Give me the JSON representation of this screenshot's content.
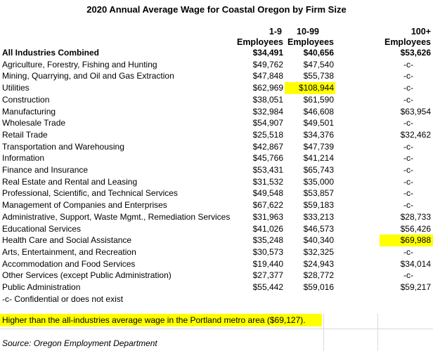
{
  "title": "2020 Annual Average Wage for Coastal Oregon by Firm Size",
  "headers": {
    "col1_line1": "1-9",
    "col1_line2": "Employees",
    "col2_line1": "10-99",
    "col2_line2": "Employees",
    "col3_line1": "100+",
    "col3_line2": "Employees"
  },
  "rows": [
    {
      "label": "All Industries Combined",
      "v1": "$34,491",
      "v2": "$40,656",
      "v3": "$53,626"
    },
    {
      "label": "Agriculture, Forestry, Fishing and Hunting",
      "v1": "$49,762",
      "v2": "$47,540",
      "v3": "-c-"
    },
    {
      "label": "Mining, Quarrying, and Oil and Gas Extraction",
      "v1": "$47,848",
      "v2": "$55,738",
      "v3": "-c-"
    },
    {
      "label": "Utilities",
      "v1": "$62,969",
      "v2": "$108,944",
      "v3": "-c-"
    },
    {
      "label": "Construction",
      "v1": "$38,051",
      "v2": "$61,590",
      "v3": "-c-"
    },
    {
      "label": "Manufacturing",
      "v1": "$32,984",
      "v2": "$46,608",
      "v3": "$63,954"
    },
    {
      "label": "Wholesale Trade",
      "v1": "$54,907",
      "v2": "$49,501",
      "v3": "-c-"
    },
    {
      "label": "Retail Trade",
      "v1": "$25,518",
      "v2": "$34,376",
      "v3": "$32,462"
    },
    {
      "label": "Transportation and Warehousing",
      "v1": "$42,867",
      "v2": "$47,739",
      "v3": "-c-"
    },
    {
      "label": "Information",
      "v1": "$45,766",
      "v2": "$41,214",
      "v3": "-c-"
    },
    {
      "label": "Finance and Insurance",
      "v1": "$53,431",
      "v2": "$65,743",
      "v3": "-c-"
    },
    {
      "label": "Real Estate and Rental and Leasing",
      "v1": "$31,532",
      "v2": "$35,000",
      "v3": "-c-"
    },
    {
      "label": "Professional, Scientific, and Technical Services",
      "v1": "$49,548",
      "v2": "$53,857",
      "v3": "-c-"
    },
    {
      "label": "Management of Companies and Enterprises",
      "v1": "$67,622",
      "v2": "$59,183",
      "v3": "-c-"
    },
    {
      "label": "Administrative, Support, Waste Mgmt., Remediation Services",
      "v1": "$31,963",
      "v2": "$33,213",
      "v3": "$28,733"
    },
    {
      "label": "Educational Services",
      "v1": "$41,026",
      "v2": "$46,573",
      "v3": "$56,426"
    },
    {
      "label": "Health Care and Social Assistance",
      "v1": "$35,248",
      "v2": "$40,340",
      "v3": "$69,988"
    },
    {
      "label": "Arts, Entertainment, and Recreation",
      "v1": "$30,573",
      "v2": "$32,325",
      "v3": "-c-"
    },
    {
      "label": "Accommodation and Food Services",
      "v1": "$19,440",
      "v2": "$24,943",
      "v3": "$34,014"
    },
    {
      "label": "Other Services (except Public Administration)",
      "v1": "$27,377",
      "v2": "$28,772",
      "v3": "-c-"
    },
    {
      "label": "Public Administration",
      "v1": "$55,442",
      "v2": "$59,016",
      "v3": "$59,217"
    }
  ],
  "footnote": "-c- Confidential or does not exist",
  "highlight_note": "Higher than the all-industries average wage in the Portland metro area ($69,127).",
  "source": "Source: Oregon Employment Department",
  "highlight_color": "#ffff00"
}
